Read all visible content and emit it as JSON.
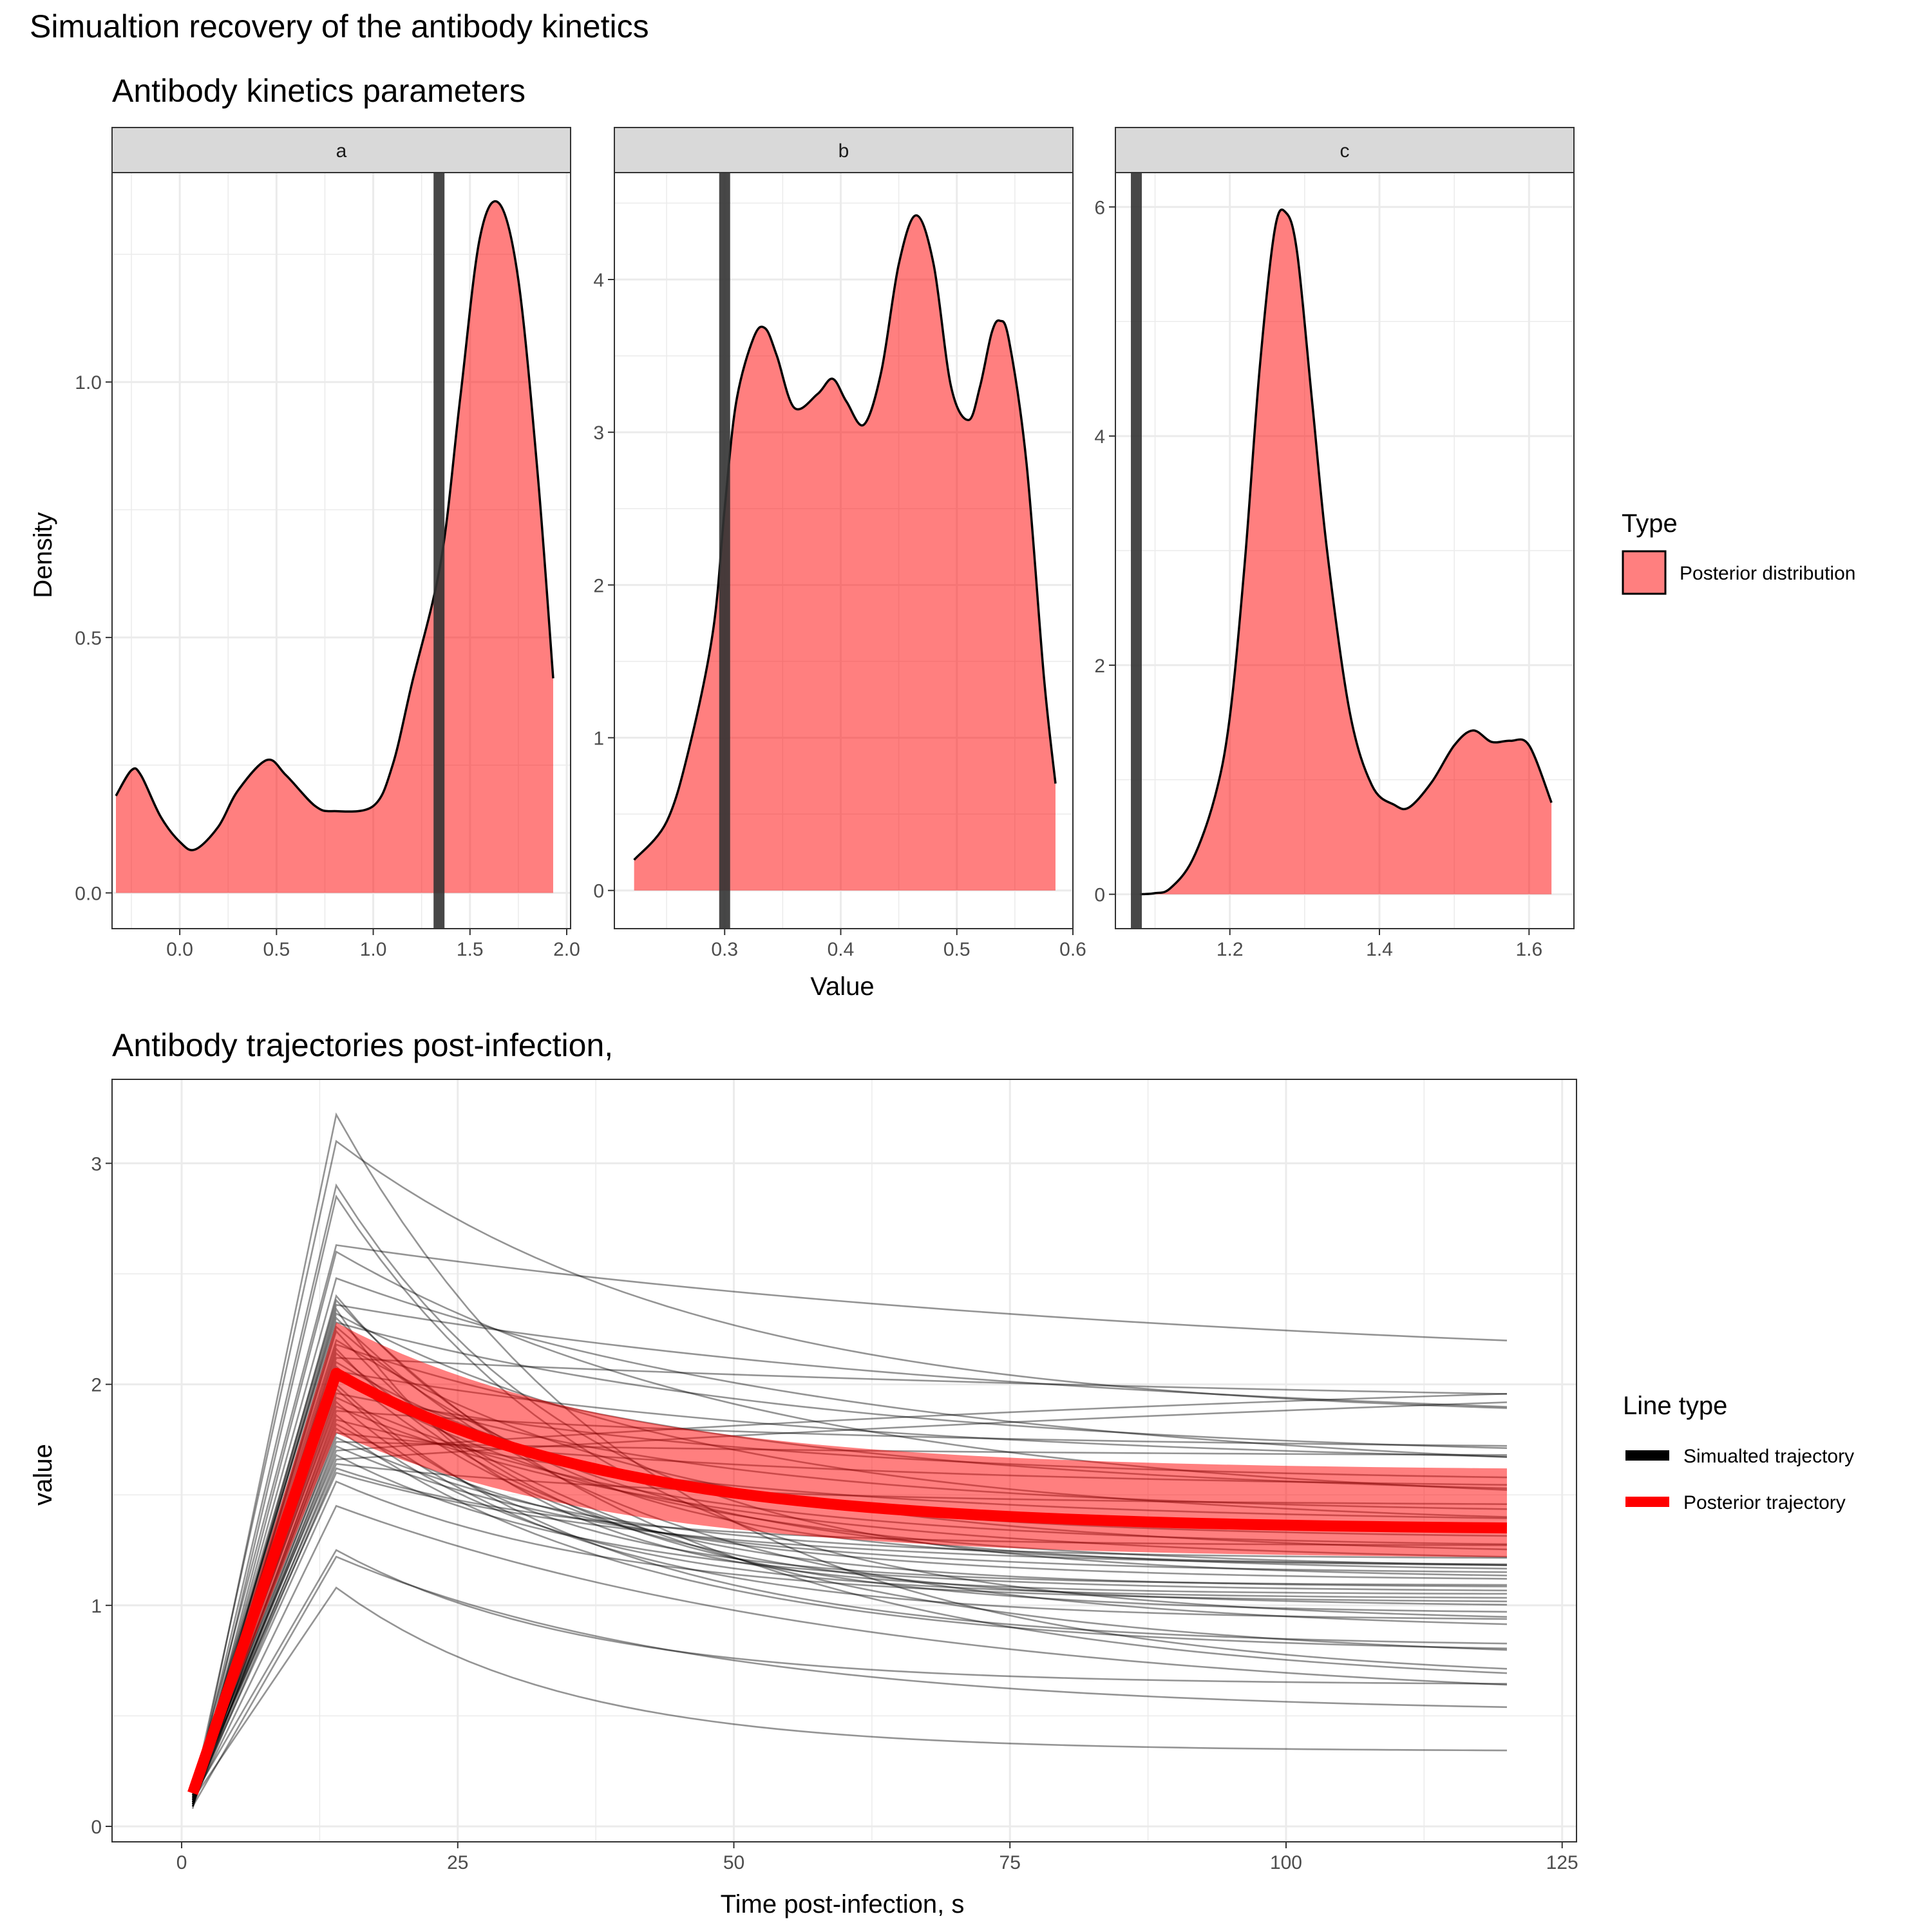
{
  "figure": {
    "title": "Simualtion recovery of the antibody kinetics"
  },
  "chart_data": [
    {
      "type": "area",
      "subtitle": "Antibody kinetics parameters",
      "xlabel": "Value",
      "ylabel": "Density",
      "legend": {
        "title": "Type",
        "entries": [
          "Posterior distribution"
        ],
        "placement": "right"
      },
      "fill_color": "#FF0000",
      "fill_alpha": 0.5,
      "truth_line_color": "#333333",
      "grid": true,
      "panels": [
        {
          "strip": "a",
          "xlim": [
            -0.35,
            2.02
          ],
          "ylim": [
            -0.07,
            1.41
          ],
          "x_ticks": [
            0.0,
            0.5,
            1.0,
            1.5,
            2.0
          ],
          "x_tick_labels": [
            "0.0",
            "0.5",
            "1.0",
            "1.5",
            "2.0"
          ],
          "y_ticks": [
            0.0,
            0.5,
            1.0
          ],
          "y_tick_labels": [
            "0.0",
            "0.5",
            "1.0"
          ],
          "true_value": 1.34,
          "density_x": [
            -0.33,
            -0.25,
            -0.2,
            -0.1,
            0.0,
            0.08,
            0.2,
            0.3,
            0.45,
            0.55,
            0.7,
            0.8,
            1.0,
            1.1,
            1.2,
            1.35,
            1.45,
            1.55,
            1.65,
            1.75,
            1.85,
            1.93
          ],
          "density_y": [
            0.19,
            0.24,
            0.23,
            0.15,
            0.1,
            0.085,
            0.13,
            0.2,
            0.26,
            0.23,
            0.17,
            0.16,
            0.17,
            0.25,
            0.41,
            0.65,
            0.97,
            1.28,
            1.35,
            1.2,
            0.82,
            0.42
          ]
        },
        {
          "strip": "b",
          "xlim": [
            0.205,
            0.6
          ],
          "ylim": [
            -0.25,
            4.7
          ],
          "x_ticks": [
            0.3,
            0.4,
            0.5,
            0.6
          ],
          "x_tick_labels": [
            "0.3",
            "0.4",
            "0.5",
            "0.6"
          ],
          "y_ticks": [
            0,
            1,
            2,
            3,
            4
          ],
          "y_tick_labels": [
            "0",
            "1",
            "2",
            "3",
            "4"
          ],
          "true_value": 0.3,
          "density_x": [
            0.222,
            0.25,
            0.27,
            0.29,
            0.3,
            0.31,
            0.325,
            0.335,
            0.345,
            0.36,
            0.38,
            0.393,
            0.405,
            0.42,
            0.435,
            0.45,
            0.465,
            0.48,
            0.495,
            0.51,
            0.52,
            0.53,
            0.537,
            0.545,
            0.56,
            0.575,
            0.585
          ],
          "density_y": [
            0.2,
            0.45,
            0.95,
            1.7,
            2.5,
            3.2,
            3.62,
            3.68,
            3.5,
            3.16,
            3.25,
            3.35,
            3.2,
            3.05,
            3.4,
            4.1,
            4.42,
            4.1,
            3.3,
            3.08,
            3.3,
            3.65,
            3.73,
            3.6,
            2.8,
            1.4,
            0.7
          ]
        },
        {
          "strip": "c",
          "xlim": [
            1.047,
            1.66
          ],
          "ylim": [
            -0.3,
            6.3
          ],
          "x_ticks": [
            1.2,
            1.4,
            1.6
          ],
          "x_tick_labels": [
            "1.2",
            "1.4",
            "1.6"
          ],
          "y_ticks": [
            0,
            2,
            4,
            6
          ],
          "y_tick_labels": [
            "0",
            "2",
            "4",
            "6"
          ],
          "true_value": 1.075,
          "density_x": [
            1.08,
            1.1,
            1.12,
            1.15,
            1.18,
            1.2,
            1.22,
            1.24,
            1.26,
            1.275,
            1.29,
            1.31,
            1.33,
            1.36,
            1.39,
            1.42,
            1.44,
            1.47,
            1.5,
            1.525,
            1.55,
            1.575,
            1.6,
            1.63
          ],
          "density_y": [
            0.0,
            0.01,
            0.05,
            0.3,
            0.85,
            1.55,
            2.9,
            4.6,
            5.8,
            5.95,
            5.6,
            4.3,
            3.0,
            1.6,
            0.95,
            0.78,
            0.76,
            0.98,
            1.3,
            1.43,
            1.33,
            1.34,
            1.3,
            0.8
          ]
        }
      ]
    },
    {
      "type": "line",
      "subtitle": "Antibody trajectories post-infection,",
      "xlabel": "Time post-infection, s",
      "ylabel": "value",
      "xlim": [
        -6.3,
        126.3
      ],
      "ylim": [
        -0.07,
        3.38
      ],
      "x_ticks": [
        0,
        25,
        50,
        75,
        100,
        125
      ],
      "x_tick_labels": [
        "0",
        "25",
        "50",
        "75",
        "100",
        "125"
      ],
      "y_ticks": [
        0,
        1,
        2,
        3
      ],
      "y_tick_labels": [
        "0",
        "1",
        "2",
        "3"
      ],
      "grid": true,
      "legend": {
        "title": "Line type",
        "entries": [
          "Simualted trajectory",
          "Posterior trajectory"
        ],
        "colors": [
          "#000000",
          "#FF0000"
        ],
        "placement": "right"
      },
      "curve_model": "value = start + (peak - start) * t / 14 for t <= 14; value = end + (peak - end) * exp(-k * (t - 14)) for t > 14",
      "trajectory_start_day": 1,
      "peak_day": 14,
      "end_day": 120,
      "posterior": {
        "name": "Posterior trajectory",
        "color": "#FF0000",
        "start": 0.15,
        "peak": 2.05,
        "end": 1.34,
        "k": 0.04,
        "band_lower_peak": 1.78,
        "band_upper_peak": 2.28,
        "band_lower_end": 1.21,
        "band_upper_end": 1.61
      },
      "simulated": {
        "name": "Simualted trajectory",
        "color": "#000000",
        "peaks": [
          3.22,
          3.1,
          2.9,
          2.85,
          2.63,
          2.6,
          2.48,
          2.4,
          2.38,
          2.36,
          2.34,
          2.32,
          2.3,
          2.28,
          2.26,
          2.24,
          2.2,
          2.18,
          2.16,
          2.14,
          2.12,
          2.1,
          2.08,
          2.06,
          2.04,
          2.02,
          2.0,
          1.98,
          1.96,
          1.94,
          1.92,
          1.9,
          1.88,
          1.86,
          1.84,
          1.82,
          1.8,
          1.78,
          1.76,
          1.74,
          1.72,
          1.7,
          1.68,
          1.66,
          1.64,
          1.62,
          1.6,
          1.56,
          1.45,
          1.25,
          1.22,
          1.08
        ],
        "ends": [
          0.65,
          1.84,
          1.12,
          0.92,
          2.03,
          1.44,
          1.56,
          1.18,
          0.62,
          1.78,
          1.05,
          1.35,
          0.88,
          1.65,
          1.15,
          0.96,
          1.22,
          1.48,
          1.08,
          0.74,
          1.87,
          1.3,
          0.99,
          1.62,
          1.16,
          1.41,
          0.81,
          1.09,
          1.55,
          1.26,
          0.93,
          1.19,
          1.7,
          1.03,
          1.37,
          1.11,
          0.78,
          1.52,
          1.21,
          1.67,
          1.14,
          2.15,
          1.06,
          2.21,
          1.45,
          1.27,
          1.17,
          1.01,
          0.53,
          0.64,
          0.51,
          0.34
        ],
        "rates": [
          0.035,
          0.03,
          0.045,
          0.04,
          0.012,
          0.025,
          0.02,
          0.05,
          0.03,
          0.015,
          0.06,
          0.028,
          0.035,
          0.022,
          0.04,
          0.045,
          0.032,
          0.025,
          0.05,
          0.03,
          0.01,
          0.038,
          0.042,
          0.02,
          0.035,
          0.03,
          0.04,
          0.055,
          0.025,
          0.035,
          0.045,
          0.03,
          0.02,
          0.05,
          0.028,
          0.04,
          0.035,
          0.022,
          0.045,
          0.018,
          0.038,
          0.008,
          0.042,
          0.006,
          0.03,
          0.048,
          0.034,
          0.04,
          0.02,
          0.045,
          0.03,
          0.05
        ],
        "starts": [
          0.1,
          0.14,
          0.12,
          0.08,
          0.16,
          0.11,
          0.13,
          0.09,
          0.15,
          0.12,
          0.1,
          0.14,
          0.17,
          0.11,
          0.09,
          0.13,
          0.15,
          0.12,
          0.1,
          0.14,
          0.11,
          0.13,
          0.16,
          0.12,
          0.1,
          0.15,
          0.09,
          0.13,
          0.11,
          0.14,
          0.12,
          0.16,
          0.1,
          0.13,
          0.11,
          0.15,
          0.12,
          0.09,
          0.14,
          0.1,
          0.13,
          0.12,
          0.16,
          0.11,
          0.14,
          0.1,
          0.15,
          0.12,
          0.11,
          0.13,
          0.09,
          0.12
        ]
      }
    }
  ]
}
